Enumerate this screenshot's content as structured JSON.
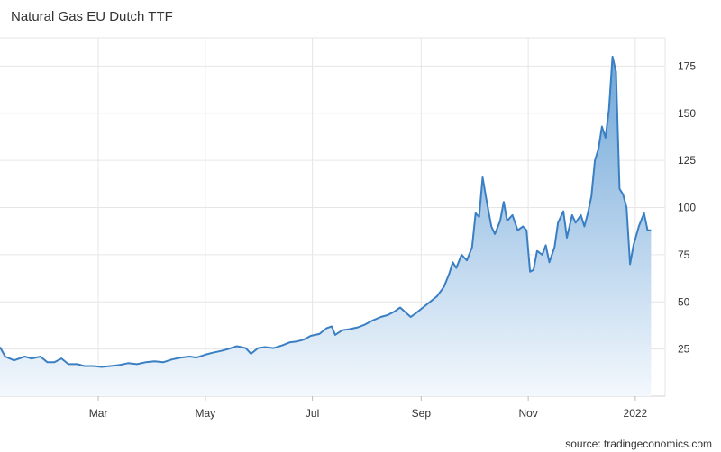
{
  "header": {
    "title": "Natural Gas EU Dutch TTF"
  },
  "footer": {
    "source": "source: tradingeconomics.com"
  },
  "chart_data": {
    "type": "area",
    "title": "Natural Gas EU Dutch TTF",
    "xlabel": "",
    "ylabel": "",
    "x_axis": {
      "ticks": [
        {
          "label": "Mar",
          "date": "2021-03-01"
        },
        {
          "label": "May",
          "date": "2021-05-01"
        },
        {
          "label": "Jul",
          "date": "2021-07-01"
        },
        {
          "label": "Sep",
          "date": "2021-09-01"
        },
        {
          "label": "Nov",
          "date": "2021-11-01"
        },
        {
          "label": "2022",
          "date": "2022-01-01"
        }
      ],
      "range": [
        "2021-01-04",
        "2022-01-18"
      ]
    },
    "y_axis": {
      "ticks": [
        25,
        50,
        75,
        100,
        125,
        150,
        175
      ],
      "range": [
        0,
        190
      ],
      "position": "right"
    },
    "grid": true,
    "legend": "none",
    "colors": {
      "line": "#3a7fc4",
      "fill_top": "#6fa6d8",
      "fill_bottom": "#f3f8fd",
      "grid": "#e6e6e6"
    },
    "series": [
      {
        "points": [
          [
            "2021-01-04",
            26
          ],
          [
            "2021-01-07",
            21
          ],
          [
            "2021-01-12",
            19
          ],
          [
            "2021-01-18",
            21
          ],
          [
            "2021-01-22",
            20
          ],
          [
            "2021-01-27",
            21
          ],
          [
            "2021-01-31",
            18
          ],
          [
            "2021-02-04",
            18
          ],
          [
            "2021-02-08",
            20
          ],
          [
            "2021-02-12",
            17
          ],
          [
            "2021-02-17",
            17
          ],
          [
            "2021-02-21",
            16
          ],
          [
            "2021-02-26",
            16
          ],
          [
            "2021-03-03",
            15.5
          ],
          [
            "2021-03-08",
            16
          ],
          [
            "2021-03-13",
            16.5
          ],
          [
            "2021-03-18",
            17.5
          ],
          [
            "2021-03-23",
            17
          ],
          [
            "2021-03-28",
            18
          ],
          [
            "2021-04-02",
            18.5
          ],
          [
            "2021-04-07",
            18
          ],
          [
            "2021-04-12",
            19.5
          ],
          [
            "2021-04-17",
            20.5
          ],
          [
            "2021-04-22",
            21
          ],
          [
            "2021-04-26",
            20.5
          ],
          [
            "2021-05-01",
            22
          ],
          [
            "2021-05-05",
            23
          ],
          [
            "2021-05-10",
            24
          ],
          [
            "2021-05-14",
            25
          ],
          [
            "2021-05-19",
            26.5
          ],
          [
            "2021-05-24",
            25.5
          ],
          [
            "2021-05-27",
            22.5
          ],
          [
            "2021-05-31",
            25.5
          ],
          [
            "2021-06-04",
            26
          ],
          [
            "2021-06-09",
            25.5
          ],
          [
            "2021-06-14",
            27
          ],
          [
            "2021-06-18",
            28.5
          ],
          [
            "2021-06-22",
            29
          ],
          [
            "2021-06-26",
            30
          ],
          [
            "2021-06-30",
            32
          ],
          [
            "2021-07-05",
            33
          ],
          [
            "2021-07-09",
            36
          ],
          [
            "2021-07-12",
            37
          ],
          [
            "2021-07-14",
            32.5
          ],
          [
            "2021-07-18",
            35
          ],
          [
            "2021-07-22",
            35.5
          ],
          [
            "2021-07-27",
            36.5
          ],
          [
            "2021-07-31",
            38
          ],
          [
            "2021-08-04",
            40
          ],
          [
            "2021-08-09",
            42
          ],
          [
            "2021-08-13",
            43
          ],
          [
            "2021-08-17",
            45
          ],
          [
            "2021-08-20",
            47
          ],
          [
            "2021-08-23",
            44.5
          ],
          [
            "2021-08-26",
            42
          ],
          [
            "2021-08-29",
            44
          ],
          [
            "2021-09-02",
            47
          ],
          [
            "2021-09-06",
            50
          ],
          [
            "2021-09-10",
            53
          ],
          [
            "2021-09-14",
            58
          ],
          [
            "2021-09-17",
            65
          ],
          [
            "2021-09-19",
            71
          ],
          [
            "2021-09-21",
            68
          ],
          [
            "2021-09-24",
            75
          ],
          [
            "2021-09-27",
            72
          ],
          [
            "2021-09-30",
            79
          ],
          [
            "2021-10-02",
            97
          ],
          [
            "2021-10-04",
            95
          ],
          [
            "2021-10-06",
            116
          ],
          [
            "2021-10-08",
            105
          ],
          [
            "2021-10-11",
            90
          ],
          [
            "2021-10-13",
            86
          ],
          [
            "2021-10-16",
            93
          ],
          [
            "2021-10-18",
            103
          ],
          [
            "2021-10-20",
            93
          ],
          [
            "2021-10-23",
            96
          ],
          [
            "2021-10-26",
            88
          ],
          [
            "2021-10-29",
            90
          ],
          [
            "2021-10-31",
            88
          ],
          [
            "2021-11-02",
            66
          ],
          [
            "2021-11-04",
            67
          ],
          [
            "2021-11-06",
            77
          ],
          [
            "2021-11-09",
            75
          ],
          [
            "2021-11-11",
            80
          ],
          [
            "2021-11-13",
            71
          ],
          [
            "2021-11-16",
            79
          ],
          [
            "2021-11-18",
            92
          ],
          [
            "2021-11-21",
            98
          ],
          [
            "2021-11-23",
            84
          ],
          [
            "2021-11-26",
            96
          ],
          [
            "2021-11-28",
            92
          ],
          [
            "2021-12-01",
            96
          ],
          [
            "2021-12-03",
            90
          ],
          [
            "2021-12-05",
            97
          ],
          [
            "2021-12-07",
            106
          ],
          [
            "2021-12-09",
            125
          ],
          [
            "2021-12-11",
            131
          ],
          [
            "2021-12-13",
            143
          ],
          [
            "2021-12-15",
            137
          ],
          [
            "2021-12-17",
            152
          ],
          [
            "2021-12-19",
            180
          ],
          [
            "2021-12-21",
            172
          ],
          [
            "2021-12-23",
            110
          ],
          [
            "2021-12-25",
            107
          ],
          [
            "2021-12-27",
            100
          ],
          [
            "2021-12-29",
            70
          ],
          [
            "2021-12-31",
            80
          ],
          [
            "2022-01-03",
            90
          ],
          [
            "2022-01-06",
            97
          ],
          [
            "2022-01-08",
            88
          ],
          [
            "2022-01-10",
            88
          ]
        ]
      }
    ]
  }
}
